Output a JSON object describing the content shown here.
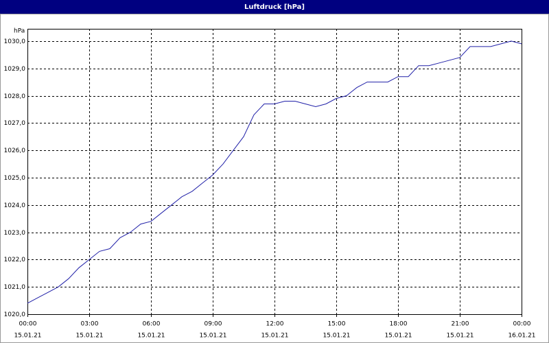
{
  "chart_data": {
    "type": "line",
    "title": "Luftdruck [hPa]",
    "y_label": "hPa",
    "xlim": [
      0,
      24
    ],
    "ylim": [
      1020,
      1030.45
    ],
    "xticks": [
      {
        "value": 0,
        "label": [
          "00:00",
          "15.01.21"
        ]
      },
      {
        "value": 3,
        "label": [
          "03:00",
          "15.01.21"
        ]
      },
      {
        "value": 6,
        "label": [
          "06:00",
          "15.01.21"
        ]
      },
      {
        "value": 9,
        "label": [
          "09:00",
          "15.01.21"
        ]
      },
      {
        "value": 12,
        "label": [
          "12:00",
          "15.01.21"
        ]
      },
      {
        "value": 15,
        "label": [
          "15:00",
          "15.01.21"
        ]
      },
      {
        "value": 18,
        "label": [
          "18:00",
          "15.01.21"
        ]
      },
      {
        "value": 21,
        "label": [
          "21:00",
          "15.01.21"
        ]
      },
      {
        "value": 24,
        "label": [
          "00:00",
          "16.01.21"
        ]
      }
    ],
    "yticks": [
      {
        "value": 1020,
        "label": "1020,0"
      },
      {
        "value": 1021,
        "label": "1021,0"
      },
      {
        "value": 1022,
        "label": "1022,0"
      },
      {
        "value": 1023,
        "label": "1023,0"
      },
      {
        "value": 1024,
        "label": "1024,0"
      },
      {
        "value": 1025,
        "label": "1025,0"
      },
      {
        "value": 1026,
        "label": "1026,0"
      },
      {
        "value": 1027,
        "label": "1027,0"
      },
      {
        "value": 1028,
        "label": "1028,0"
      },
      {
        "value": 1029,
        "label": "1029,0"
      },
      {
        "value": 1030,
        "label": "1030,0"
      }
    ],
    "grid": true,
    "x": [
      0,
      0.5,
      1,
      1.5,
      2,
      2.5,
      3,
      3.5,
      4,
      4.5,
      5,
      5.5,
      6,
      6.5,
      7,
      7.5,
      8,
      8.5,
      9,
      9.5,
      10,
      10.5,
      11,
      11.5,
      12,
      12.5,
      13,
      13.5,
      14,
      14.5,
      15,
      15.5,
      16,
      16.5,
      17,
      17.5,
      18,
      18.5,
      19,
      19.5,
      20,
      20.5,
      21,
      21.5,
      22,
      22.5,
      23,
      23.5,
      24
    ],
    "series": [
      {
        "color": "#2020a8",
        "values": [
          1020.4,
          1020.6,
          1020.8,
          1021.0,
          1021.3,
          1021.7,
          1022.0,
          1022.3,
          1022.4,
          1022.8,
          1023.0,
          1023.3,
          1023.4,
          1023.7,
          1024.0,
          1024.3,
          1024.5,
          1024.8,
          1025.1,
          1025.5,
          1026.0,
          1026.5,
          1027.3,
          1027.7,
          1027.7,
          1027.8,
          1027.8,
          1027.7,
          1027.6,
          1027.7,
          1027.9,
          1028.0,
          1028.3,
          1028.5,
          1028.5,
          1028.5,
          1028.7,
          1028.7,
          1029.1,
          1029.1,
          1029.2,
          1029.3,
          1029.4,
          1029.8,
          1029.8,
          1029.8,
          1029.9,
          1030.0,
          1029.9
        ]
      }
    ]
  }
}
